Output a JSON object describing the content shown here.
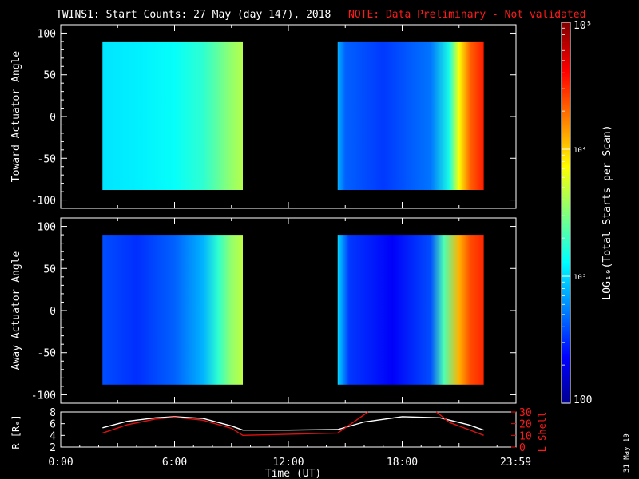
{
  "title": {
    "main": "TWINS1: Start Counts: 27 May (day 147), 2018",
    "note": "NOTE: Data Preliminary - Not validated"
  },
  "colors": {
    "background": "#000000",
    "text": "#ffffff",
    "note": "#ff1a1a",
    "lshell": "#e01010",
    "rcurve": "#ffffff"
  },
  "footer_stamp": "31 May 19",
  "chart_data": [
    {
      "type": "heatmap",
      "id": "toward",
      "ylabel": "Toward Actuator Angle",
      "ylim": [
        -110,
        110
      ],
      "yticks": [
        -100,
        -50,
        0,
        50,
        100
      ],
      "xlim": [
        0,
        24
      ],
      "y_coverage": [
        -88,
        90
      ],
      "segments": [
        {
          "t_start": 2.2,
          "t_end": 9.6,
          "profile": [
            {
              "t": 2.2,
              "level": 0.35
            },
            {
              "t": 4.0,
              "level": 0.36
            },
            {
              "t": 6.0,
              "level": 0.38
            },
            {
              "t": 7.5,
              "level": 0.42
            },
            {
              "t": 8.3,
              "level": 0.47
            },
            {
              "t": 9.0,
              "level": 0.52
            },
            {
              "t": 9.6,
              "level": 0.55
            }
          ]
        },
        {
          "t_start": 14.6,
          "t_end": 22.3,
          "profile": [
            {
              "t": 14.6,
              "level": 0.3
            },
            {
              "t": 15.0,
              "level": 0.22
            },
            {
              "t": 17.0,
              "level": 0.18
            },
            {
              "t": 19.5,
              "level": 0.24
            },
            {
              "t": 20.5,
              "level": 0.4
            },
            {
              "t": 21.0,
              "level": 0.62
            },
            {
              "t": 21.6,
              "level": 0.78
            },
            {
              "t": 22.3,
              "level": 0.85
            }
          ]
        }
      ]
    },
    {
      "type": "heatmap",
      "id": "away",
      "ylabel": "Away Actuator Angle",
      "ylim": [
        -110,
        110
      ],
      "yticks": [
        -100,
        -50,
        0,
        50,
        100
      ],
      "xlim": [
        0,
        24
      ],
      "y_coverage": [
        -88,
        90
      ],
      "segments": [
        {
          "t_start": 2.2,
          "t_end": 9.6,
          "profile": [
            {
              "t": 2.2,
              "level": 0.2
            },
            {
              "t": 4.0,
              "level": 0.17
            },
            {
              "t": 6.0,
              "level": 0.22
            },
            {
              "t": 7.5,
              "level": 0.3
            },
            {
              "t": 8.3,
              "level": 0.42
            },
            {
              "t": 9.0,
              "level": 0.52
            },
            {
              "t": 9.6,
              "level": 0.56
            }
          ]
        },
        {
          "t_start": 14.6,
          "t_end": 22.3,
          "profile": [
            {
              "t": 14.6,
              "level": 0.34
            },
            {
              "t": 15.2,
              "level": 0.18
            },
            {
              "t": 17.5,
              "level": 0.12
            },
            {
              "t": 19.5,
              "level": 0.2
            },
            {
              "t": 20.2,
              "level": 0.45
            },
            {
              "t": 21.0,
              "level": 0.7
            },
            {
              "t": 21.6,
              "level": 0.8
            },
            {
              "t": 22.3,
              "level": 0.84
            }
          ]
        }
      ]
    },
    {
      "type": "line",
      "id": "ephemeris",
      "ylabel": "R [Rₑ]",
      "ylabel_right": "L Shell",
      "xlabel": "Time (UT)",
      "xlim": [
        0,
        24
      ],
      "ylim_left": [
        2,
        8
      ],
      "yticks_left": [
        2,
        4,
        6,
        8
      ],
      "ylim_right": [
        0,
        30
      ],
      "yticks_right": [
        0,
        10,
        20,
        30
      ],
      "xticks": [
        {
          "t": 0,
          "label": "0:00"
        },
        {
          "t": 6,
          "label": "6:00"
        },
        {
          "t": 12,
          "label": "12:00"
        },
        {
          "t": 18,
          "label": "18:00"
        },
        {
          "t": 23.98,
          "label": "23:59"
        }
      ],
      "series": [
        {
          "axis": "left",
          "x": [
            2.2,
            3.5,
            5.0,
            6.0,
            7.5,
            9.0,
            9.6,
            12.0,
            14.6,
            16.0,
            18.0,
            20.0,
            21.5,
            22.3
          ],
          "y": [
            5.3,
            6.4,
            7.0,
            7.2,
            6.9,
            5.6,
            4.9,
            4.9,
            5.0,
            6.3,
            7.2,
            7.0,
            5.8,
            4.9
          ]
        },
        {
          "axis": "right",
          "x": [
            2.2,
            3.5,
            5.0,
            6.0,
            7.5,
            9.0,
            9.6,
            12.0,
            14.6,
            15.5,
            16.2
          ],
          "y": [
            12,
            19,
            24,
            25.5,
            23,
            16,
            10,
            11,
            12,
            22,
            30
          ]
        },
        {
          "axis": "right",
          "x": [
            19.8,
            20.5,
            21.5,
            22.3
          ],
          "y": [
            30,
            21,
            15,
            10
          ]
        }
      ]
    },
    {
      "type": "colorbar",
      "id": "colorbar",
      "label": "LOG₁₀(Total Starts per Scan)",
      "scale": "log",
      "range": [
        100,
        100000
      ],
      "ticks": [
        {
          "value": 100,
          "label": "100"
        },
        {
          "value": 1000,
          "label": "10³"
        },
        {
          "value": 10000,
          "label": "10⁴"
        },
        {
          "value": 100000,
          "label": "10⁵"
        }
      ]
    }
  ]
}
